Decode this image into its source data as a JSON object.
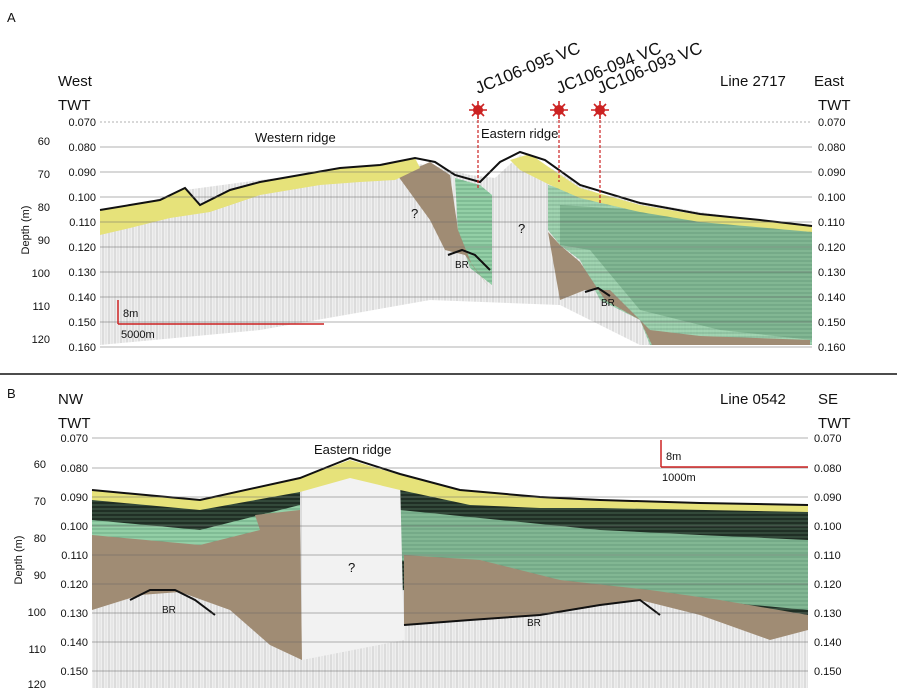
{
  "panel_a": {
    "letter": "A",
    "left_dir": "West",
    "right_dir": "East",
    "line_label": "Line 2717",
    "twt_left": "TWT",
    "twt_right": "TWT",
    "twt_ticks": [
      "0.070",
      "0.080",
      "0.090",
      "0.100",
      "0.110",
      "0.120",
      "0.130",
      "0.140",
      "0.150",
      "0.160"
    ],
    "twt_ticks_right": [
      "0.070",
      "0.080",
      "0.090",
      "0.100",
      "0.110",
      "0.120",
      "0.130",
      "0.140",
      "0.150",
      "0.160"
    ],
    "depth_ticks": [
      "60",
      "70",
      "80",
      "90",
      "100",
      "110",
      "120"
    ],
    "depth_label": "Depth (m)",
    "cores": [
      "JC106-095 VC",
      "JC106-094 VC",
      "JC106-093 VC"
    ],
    "features": {
      "western_ridge": "Western ridge",
      "eastern_ridge": "Eastern ridge",
      "q1": "?",
      "q2": "?",
      "br1": "BR",
      "br2": "BR"
    },
    "scale": {
      "vertical": "8m",
      "horizontal": "5000m"
    }
  },
  "panel_b": {
    "letter": "B",
    "left_dir": "NW",
    "right_dir": "SE",
    "line_label": "Line 0542",
    "twt_left": "TWT",
    "twt_right": "TWT",
    "twt_ticks": [
      "0.070",
      "0.080",
      "0.090",
      "0.100",
      "0.110",
      "0.120",
      "0.130",
      "0.140",
      "0.150"
    ],
    "twt_ticks_right": [
      "0.070",
      "0.080",
      "0.090",
      "0.100",
      "0.110",
      "0.120",
      "0.130",
      "0.140",
      "0.150"
    ],
    "depth_ticks": [
      "60",
      "70",
      "80",
      "90",
      "100",
      "110",
      "120"
    ],
    "depth_label": "Depth (m)",
    "features": {
      "eastern_ridge": "Eastern ridge",
      "q1": "?",
      "br1": "BR",
      "br2": "BR"
    },
    "scale": {
      "vertical": "8m",
      "horizontal": "1000m"
    }
  },
  "colors": {
    "sand": "#e6e27a",
    "green": "#93cfa6",
    "bedrock": "#a08c74",
    "seismic_dark": "#1e2a22",
    "core_marker": "#cc2222",
    "scale_bar": "#cc2222"
  }
}
